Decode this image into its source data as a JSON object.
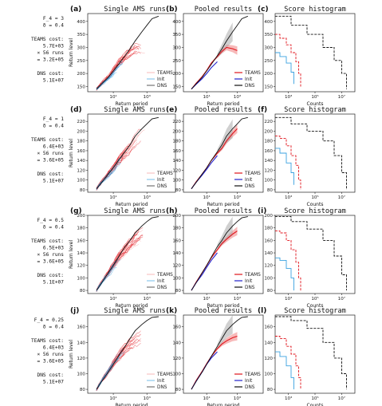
{
  "chart_data": {
    "type": "line",
    "rows": [
      {
        "side_text": [
          "F_4 = 3",
          "δ = 0.4",
          "",
          "TEAMS cost:",
          "5.7E+03",
          "× 56 runs",
          "= 3.2E+05",
          "",
          "DNS cost:",
          "5.1E+07"
        ],
        "ylim": [
          130,
          430
        ],
        "yticks": [
          150,
          200,
          250,
          300,
          350,
          400
        ],
        "hist_xlim": [
          10,
          1000000
        ],
        "panels": [
          {
            "label": "(a)",
            "title": "Single AMS runs",
            "kind": "runs",
            "ylabel": "Return level",
            "xlabel": "Return period"
          },
          {
            "label": "(b)",
            "title": "Pooled results",
            "kind": "pooled",
            "xlabel": "Return period"
          },
          {
            "label": "(c)",
            "title": "Score histogram",
            "kind": "hist",
            "xlabel": "Counts"
          }
        ],
        "dns": {
          "x": [
            1,
            2,
            5,
            10,
            20,
            50,
            100,
            200,
            500,
            1000,
            2000,
            5000
          ],
          "y": [
            140,
            160,
            185,
            210,
            235,
            268,
            295,
            325,
            360,
            385,
            410,
            420
          ]
        },
        "init": {
          "x": [
            1,
            2,
            5,
            10,
            20,
            50
          ],
          "y": [
            140,
            158,
            180,
            200,
            222,
            245
          ]
        },
        "teams": {
          "x": [
            1,
            2,
            5,
            10,
            20,
            50,
            100,
            200,
            500,
            1000
          ],
          "y": [
            140,
            162,
            188,
            212,
            240,
            265,
            285,
            300,
            295,
            288
          ]
        },
        "hist": {
          "teams": {
            "counts": [
              10,
              20,
              50,
              100,
              200,
              300,
              400
            ],
            "levels": [
              350,
              335,
              310,
              280,
              245,
              200,
              150
            ]
          },
          "init": {
            "counts": [
              10,
              20,
              50,
              100,
              150
            ],
            "levels": [
              280,
              265,
              240,
              205,
              160
            ]
          },
          "dns": {
            "counts": [
              10,
              100,
              1000,
              10000,
              50000,
              150000,
              300000
            ],
            "levels": [
              420,
              385,
              350,
              300,
              250,
              200,
              140
            ]
          }
        }
      },
      {
        "side_text": [
          "F_4 = 1",
          "δ = 0.4",
          "",
          "TEAMS cost:",
          "6.4E+03",
          "× 56 runs",
          "= 3.6E+05",
          "",
          "DNS cost:",
          "5.1E+07"
        ],
        "ylim": [
          75,
          235
        ],
        "yticks": [
          80,
          100,
          120,
          140,
          160,
          180,
          200,
          220
        ],
        "hist_xlim": [
          10,
          1000000
        ],
        "panels": [
          {
            "label": "(d)",
            "title": "Single AMS runs",
            "kind": "runs",
            "ylabel": "Return level",
            "xlabel": "Return period"
          },
          {
            "label": "(e)",
            "title": "Pooled results",
            "kind": "pooled",
            "xlabel": "Return period"
          },
          {
            "label": "(f)",
            "title": "Score histogram",
            "kind": "hist",
            "xlabel": "Counts"
          }
        ],
        "dns": {
          "x": [
            1,
            2,
            5,
            10,
            20,
            50,
            100,
            200,
            500,
            1000,
            2000,
            5000
          ],
          "y": [
            82,
            95,
            112,
            125,
            140,
            158,
            172,
            190,
            205,
            215,
            225,
            228
          ]
        },
        "init": {
          "x": [
            1,
            2,
            5,
            10,
            20,
            50
          ],
          "y": [
            82,
            95,
            110,
            122,
            135,
            150
          ]
        },
        "teams": {
          "x": [
            1,
            2,
            5,
            10,
            20,
            50,
            100,
            200,
            500,
            1000
          ],
          "y": [
            82,
            96,
            112,
            125,
            140,
            155,
            165,
            180,
            195,
            205
          ]
        },
        "hist": {
          "teams": {
            "counts": [
              10,
              20,
              50,
              100,
              200,
              300,
              400
            ],
            "levels": [
              190,
              185,
              170,
              150,
              130,
              100,
              80
            ]
          },
          "init": {
            "counts": [
              10,
              20,
              50,
              100,
              150
            ],
            "levels": [
              165,
              155,
              135,
              115,
              90
            ]
          },
          "dns": {
            "counts": [
              10,
              100,
              1000,
              10000,
              50000,
              150000,
              300000
            ],
            "levels": [
              228,
              215,
              200,
              180,
              150,
              115,
              80
            ]
          }
        }
      },
      {
        "side_text": [
          "F_4 = 0.5",
          "δ = 0.4",
          "",
          "TEAMS cost:",
          "6.5E+03",
          "× 56 runs",
          "= 3.6E+05",
          "",
          "DNS cost:",
          "5.1E+07"
        ],
        "ylim": [
          75,
          200
        ],
        "yticks": [
          80,
          100,
          120,
          140,
          160,
          180,
          200
        ],
        "hist_xlim": [
          10,
          1000000
        ],
        "panels": [
          {
            "label": "(g)",
            "title": "Single AMS runs",
            "kind": "runs",
            "ylabel": "Return level",
            "xlabel": "Return period"
          },
          {
            "label": "(h)",
            "title": "Pooled results",
            "kind": "pooled",
            "xlabel": "Return period"
          },
          {
            "label": "(i)",
            "title": "Score histogram",
            "kind": "hist",
            "xlabel": "Counts"
          }
        ],
        "dns": {
          "x": [
            1,
            2,
            5,
            10,
            20,
            50,
            100,
            200,
            500,
            1000,
            2000,
            5000
          ],
          "y": [
            80,
            92,
            108,
            120,
            133,
            150,
            160,
            172,
            183,
            190,
            196,
            198
          ]
        },
        "init": {
          "x": [
            1,
            2,
            5,
            10,
            20,
            50
          ],
          "y": [
            80,
            92,
            105,
            117,
            128,
            140
          ]
        },
        "teams": {
          "x": [
            1,
            2,
            5,
            10,
            20,
            50,
            100,
            200,
            500,
            1000
          ],
          "y": [
            80,
            93,
            108,
            120,
            132,
            145,
            155,
            162,
            170,
            175
          ]
        },
        "hist": {
          "teams": {
            "counts": [
              10,
              20,
              50,
              100,
              200,
              300,
              400
            ],
            "levels": [
              175,
              172,
              160,
              145,
              125,
              100,
              80
            ]
          },
          "init": {
            "counts": [
              10,
              20,
              50,
              100,
              150
            ],
            "levels": [
              132,
              128,
              115,
              100,
              80
            ]
          },
          "dns": {
            "counts": [
              10,
              100,
              1000,
              10000,
              50000,
              150000,
              300000
            ],
            "levels": [
              198,
              190,
              178,
              160,
              135,
              105,
              80
            ]
          }
        }
      },
      {
        "side_text": [
          "F_4 = 0.25",
          "δ = 0.4",
          "",
          "TEAMS cost:",
          "6.4E+03",
          "× 56 runs",
          "= 3.6E+05",
          "",
          "DNS cost:",
          "5.1E+07"
        ],
        "ylim": [
          75,
          175
        ],
        "yticks": [
          80,
          100,
          120,
          140,
          160
        ],
        "hist_xlim": [
          10,
          1000000
        ],
        "panels": [
          {
            "label": "(j)",
            "title": "Single AMS runs",
            "kind": "runs",
            "ylabel": "Return level",
            "xlabel": "Return period"
          },
          {
            "label": "(k)",
            "title": "Pooled results",
            "kind": "pooled",
            "xlabel": "Return period"
          },
          {
            "label": "(l)",
            "title": "Score histogram",
            "kind": "hist",
            "xlabel": "Counts"
          }
        ],
        "dns": {
          "x": [
            1,
            2,
            5,
            10,
            20,
            50,
            100,
            200,
            500,
            1000,
            2000,
            5000
          ],
          "y": [
            80,
            90,
            102,
            112,
            122,
            135,
            145,
            155,
            163,
            168,
            172,
            173
          ]
        },
        "init": {
          "x": [
            1,
            2,
            5,
            10,
            20,
            50
          ],
          "y": [
            80,
            90,
            102,
            112,
            120,
            128
          ]
        },
        "teams": {
          "x": [
            1,
            2,
            5,
            10,
            20,
            50,
            100,
            200,
            500,
            1000
          ],
          "y": [
            80,
            91,
            103,
            113,
            122,
            132,
            138,
            142,
            146,
            148
          ]
        },
        "hist": {
          "teams": {
            "counts": [
              10,
              20,
              50,
              100,
              200,
              300,
              400
            ],
            "levels": [
              148,
              145,
              135,
              125,
              110,
              95,
              80
            ]
          },
          "init": {
            "counts": [
              10,
              20,
              50,
              100,
              150
            ],
            "levels": [
              128,
              122,
              110,
              95,
              80
            ]
          },
          "dns": {
            "counts": [
              10,
              100,
              1000,
              10000,
              50000,
              150000,
              300000
            ],
            "levels": [
              173,
              168,
              158,
              140,
              120,
              100,
              80
            ]
          }
        }
      }
    ],
    "legend": [
      "TEAMS",
      "Init",
      "DNS"
    ],
    "colors": {
      "teams": "#e0141c",
      "teams_light": "#f49a9a",
      "init": "#3aa2e0",
      "pooled_init": "#2222cc",
      "dns": "#111111",
      "band_teams": "#f08080",
      "band_dns": "#aaaaaa"
    },
    "xlim": [
      0.3,
      50000
    ],
    "xtick_labels": [
      "10¹",
      "10³"
    ]
  }
}
